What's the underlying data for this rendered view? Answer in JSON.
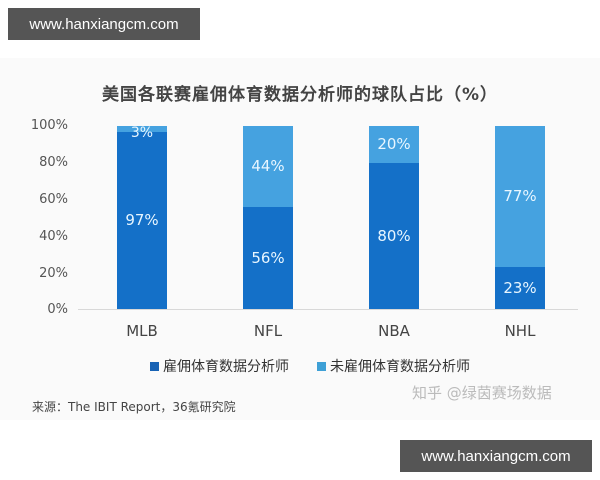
{
  "watermark": {
    "top": "www.hanxiangcm.com",
    "bottom": "www.hanxiangcm.com"
  },
  "chart_data": {
    "type": "bar",
    "stacked": true,
    "title": "美国各联赛雇佣体育数据分析师的球队占比（%）",
    "categories": [
      "MLB",
      "NFL",
      "NBA",
      "NHL"
    ],
    "series": [
      {
        "name": "雇佣体育数据分析师",
        "color": "#1470c8",
        "values": [
          97,
          56,
          80,
          23
        ],
        "labels": [
          "97%",
          "56%",
          "80%",
          "23%"
        ]
      },
      {
        "name": "未雇佣体育数据分析师",
        "color": "#45a2e0",
        "values": [
          3,
          44,
          20,
          77
        ],
        "labels": [
          "3%",
          "44%",
          "20%",
          "77%"
        ]
      }
    ],
    "yticks": [
      "100%",
      "80%",
      "60%",
      "40%",
      "20%",
      "0%"
    ],
    "ylim": [
      0,
      100
    ],
    "xlabel": "",
    "ylabel": "",
    "grid": false,
    "legend_position": "bottom"
  },
  "source": "来源：The IBIT Report，36氪研究院",
  "credit": "知乎 @绿茵赛场数据"
}
